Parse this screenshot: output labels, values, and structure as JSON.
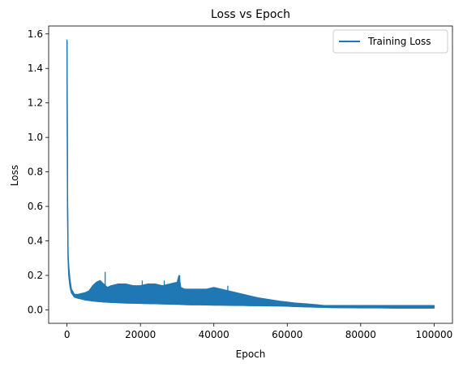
{
  "chart_data": {
    "type": "line",
    "title": "Loss vs Epoch",
    "xlabel": "Epoch",
    "ylabel": "Loss",
    "xlim": [
      -5000,
      105000
    ],
    "ylim": [
      -0.078,
      1.646
    ],
    "xticks": [
      0,
      20000,
      40000,
      60000,
      80000,
      100000
    ],
    "xtick_labels": [
      "0",
      "20000",
      "40000",
      "60000",
      "80000",
      "100000"
    ],
    "yticks": [
      0.0,
      0.2,
      0.4,
      0.6,
      0.8,
      1.0,
      1.2,
      1.4,
      1.6
    ],
    "ytick_labels": [
      "0.0",
      "0.2",
      "0.4",
      "0.6",
      "0.8",
      "1.0",
      "1.2",
      "1.4",
      "1.6"
    ],
    "grid": false,
    "legend_position": "top-right",
    "series": [
      {
        "name": "Training Loss",
        "color": "#1f77b4",
        "x": [
          0,
          50,
          150,
          300,
          500,
          800,
          1200,
          2000,
          3000,
          4000,
          5000,
          6000,
          7000,
          8000,
          9000,
          10000,
          11000,
          12000,
          14000,
          16000,
          18000,
          20000,
          22000,
          24000,
          26000,
          28000,
          30000,
          30500,
          31000,
          32000,
          34000,
          36000,
          38000,
          40000,
          42000,
          44000,
          46000,
          48000,
          50000,
          52000,
          55000,
          58000,
          60000,
          62000,
          65000,
          68000,
          70000,
          72000,
          75000,
          80000,
          85000,
          90000,
          95000,
          100000
        ],
        "lower": [
          1.56,
          1.2,
          0.6,
          0.3,
          0.2,
          0.14,
          0.1,
          0.075,
          0.068,
          0.063,
          0.058,
          0.055,
          0.052,
          0.05,
          0.048,
          0.046,
          0.045,
          0.044,
          0.042,
          0.04,
          0.039,
          0.038,
          0.037,
          0.036,
          0.035,
          0.034,
          0.033,
          0.033,
          0.032,
          0.031,
          0.03,
          0.03,
          0.029,
          0.028,
          0.028,
          0.027,
          0.026,
          0.026,
          0.025,
          0.025,
          0.024,
          0.023,
          0.022,
          0.02,
          0.018,
          0.016,
          0.015,
          0.014,
          0.013,
          0.012,
          0.012,
          0.011,
          0.011,
          0.011
        ],
        "upper": [
          1.565,
          1.3,
          0.7,
          0.32,
          0.25,
          0.18,
          0.12,
          0.09,
          0.09,
          0.095,
          0.1,
          0.11,
          0.14,
          0.16,
          0.17,
          0.15,
          0.13,
          0.14,
          0.15,
          0.15,
          0.14,
          0.14,
          0.15,
          0.15,
          0.14,
          0.15,
          0.16,
          0.2,
          0.13,
          0.12,
          0.12,
          0.12,
          0.12,
          0.13,
          0.12,
          0.11,
          0.1,
          0.09,
          0.08,
          0.07,
          0.06,
          0.05,
          0.045,
          0.04,
          0.035,
          0.03,
          0.025,
          0.025,
          0.025,
          0.025,
          0.025,
          0.025,
          0.025,
          0.025
        ]
      }
    ],
    "spikes": [
      {
        "x": 10400,
        "y": 0.22
      },
      {
        "x": 20500,
        "y": 0.17
      },
      {
        "x": 26500,
        "y": 0.17
      },
      {
        "x": 30700,
        "y": 0.2
      },
      {
        "x": 43800,
        "y": 0.14
      }
    ]
  }
}
